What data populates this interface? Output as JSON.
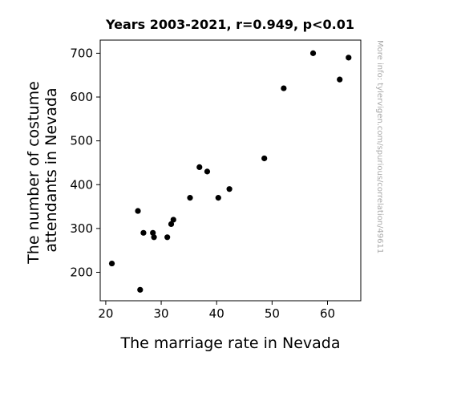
{
  "chart_data": {
    "type": "scatter",
    "title": "Years 2003-2021, r=0.949, p<0.01",
    "xlabel": "The marriage rate in Nevada",
    "ylabel_lines": [
      "The number of costume",
      "attendants in Nevada"
    ],
    "watermark": "More info: tylervigen.com/spurious/correlation/49611",
    "xlim": [
      19,
      66
    ],
    "ylim": [
      135,
      730
    ],
    "xticks": [
      20,
      30,
      40,
      50,
      60
    ],
    "yticks": [
      200,
      300,
      400,
      500,
      600,
      700
    ],
    "grid": false,
    "legend": "none",
    "point_color": "#000000",
    "points": [
      {
        "x": 21.1,
        "y": 220
      },
      {
        "x": 25.8,
        "y": 340
      },
      {
        "x": 26.2,
        "y": 160
      },
      {
        "x": 26.8,
        "y": 290
      },
      {
        "x": 28.5,
        "y": 290
      },
      {
        "x": 28.7,
        "y": 280
      },
      {
        "x": 31.1,
        "y": 280
      },
      {
        "x": 31.8,
        "y": 310
      },
      {
        "x": 32.2,
        "y": 320
      },
      {
        "x": 35.2,
        "y": 370
      },
      {
        "x": 36.9,
        "y": 440
      },
      {
        "x": 38.3,
        "y": 430
      },
      {
        "x": 40.3,
        "y": 370
      },
      {
        "x": 42.3,
        "y": 390
      },
      {
        "x": 48.6,
        "y": 460
      },
      {
        "x": 52.1,
        "y": 620
      },
      {
        "x": 57.4,
        "y": 700
      },
      {
        "x": 62.2,
        "y": 640
      },
      {
        "x": 63.8,
        "y": 690
      }
    ]
  }
}
